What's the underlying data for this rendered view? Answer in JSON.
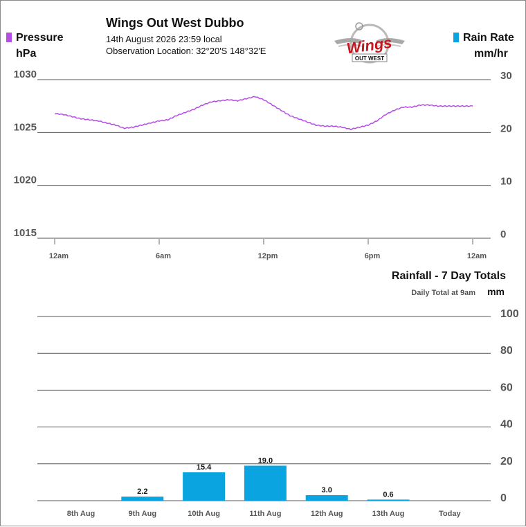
{
  "header": {
    "title": "Wings Out West Dubbo",
    "date_line": "14th August 2026  23:59 local",
    "location_line": "Observation Location: 32°20'S 148°32'E"
  },
  "logo": {
    "script_text": "Wings",
    "banner_text": "OUT WEST"
  },
  "legend": {
    "left_label": "Pressure",
    "left_unit": "hPa",
    "left_color": "#b44ee4",
    "right_label": "Rain Rate",
    "right_unit": "mm/hr",
    "right_color": "#0aa5e0"
  },
  "chart_data": [
    {
      "type": "line",
      "series": [
        {
          "name": "Pressure",
          "axis": "left",
          "color": "#b44ee4",
          "x": [
            0,
            0.5,
            1,
            1.5,
            2,
            2.5,
            3,
            3.5,
            4,
            4.5,
            5,
            5.5,
            6,
            6.5,
            7,
            7.5,
            8,
            8.5,
            9,
            9.5,
            10,
            10.5,
            11,
            11.5,
            12,
            12.5,
            13,
            13.5,
            14,
            14.5,
            15,
            15.5,
            16,
            16.5,
            17,
            17.5,
            18,
            18.5,
            19,
            19.5,
            20,
            20.5,
            21,
            21.5,
            22,
            22.5,
            23,
            23.5,
            24
          ],
          "values": [
            1026.8,
            1026.7,
            1026.5,
            1026.3,
            1026.2,
            1026.1,
            1025.9,
            1025.7,
            1025.4,
            1025.5,
            1025.7,
            1025.9,
            1026.1,
            1026.2,
            1026.6,
            1026.9,
            1027.2,
            1027.6,
            1027.9,
            1028.0,
            1028.1,
            1028.0,
            1028.2,
            1028.4,
            1028.1,
            1027.6,
            1027.1,
            1026.6,
            1026.3,
            1026.0,
            1025.7,
            1025.6,
            1025.6,
            1025.5,
            1025.3,
            1025.5,
            1025.7,
            1026.1,
            1026.7,
            1027.1,
            1027.4,
            1027.4,
            1027.6,
            1027.6,
            1027.5,
            1027.5,
            1027.5,
            1027.5,
            1027.5
          ]
        },
        {
          "name": "Rain Rate",
          "axis": "right",
          "color": "#0aa5e0",
          "x": [],
          "values": []
        }
      ],
      "x_tick_labels": [
        "12am",
        "6am",
        "12pm",
        "6pm",
        "12am"
      ],
      "xlim": [
        0,
        24
      ],
      "ylim_left": [
        1015,
        1030
      ],
      "ylim_right": [
        0,
        30
      ],
      "y_ticks_left": [
        1030,
        1025,
        1020,
        1015
      ],
      "y_ticks_right": [
        30,
        20,
        10,
        0
      ],
      "grid": true
    },
    {
      "type": "bar",
      "title": "Rainfall - 7 Day Totals",
      "subtitle": "Daily Total at 9am",
      "unit": "mm",
      "categories": [
        "8th Aug",
        "9th Aug",
        "10th Aug",
        "11th Aug",
        "12th Aug",
        "13th Aug",
        "Today"
      ],
      "values": [
        null,
        2.2,
        15.4,
        19.0,
        3.0,
        0.6,
        null
      ],
      "value_labels": [
        "",
        "2.2",
        "15.4",
        "19.0",
        "3.0",
        "0.6",
        ""
      ],
      "ylim": [
        0,
        100
      ],
      "y_ticks": [
        100,
        80,
        60,
        40,
        20,
        0
      ],
      "color": "#0aa5e0",
      "grid": true
    }
  ]
}
